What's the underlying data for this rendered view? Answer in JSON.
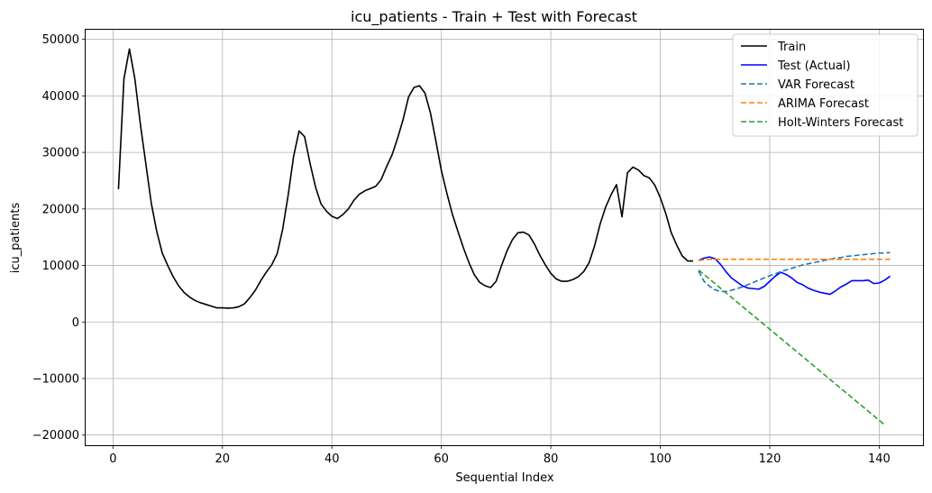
{
  "chart_data": {
    "type": "line",
    "title": "icu_patients - Train + Test with Forecast",
    "xlabel": "Sequential Index",
    "ylabel": "icu_patients",
    "xlim": [
      -5,
      148
    ],
    "ylim": [
      -21800,
      51700
    ],
    "grid": true,
    "legend_position": "top-right",
    "x_ticks": [
      0,
      20,
      40,
      60,
      80,
      100,
      120,
      140
    ],
    "y_ticks": [
      -20000,
      -10000,
      0,
      10000,
      20000,
      30000,
      40000,
      50000
    ],
    "x_tick_labels": [
      "0",
      "20",
      "40",
      "60",
      "80",
      "100",
      "120",
      "140"
    ],
    "y_tick_labels": [
      "−20000",
      "−10000",
      "0",
      "10000",
      "20000",
      "30000",
      "40000",
      "50000"
    ],
    "series": [
      {
        "name": "Train",
        "color": "#000000",
        "style": "solid",
        "x": [
          1,
          2,
          3,
          4,
          5,
          6,
          7,
          8,
          9,
          10,
          11,
          12,
          13,
          14,
          15,
          16,
          17,
          18,
          19,
          20,
          21,
          22,
          23,
          24,
          25,
          26,
          27,
          28,
          29,
          30,
          31,
          32,
          33,
          34,
          35,
          36,
          37,
          38,
          39,
          40,
          41,
          42,
          43,
          44,
          45,
          46,
          47,
          48,
          49,
          50,
          51,
          52,
          53,
          54,
          55,
          56,
          57,
          58,
          59,
          60,
          61,
          62,
          63,
          64,
          65,
          66,
          67,
          68,
          69,
          70,
          71,
          72,
          73,
          74,
          75,
          76,
          77,
          78,
          79,
          80,
          81,
          82,
          83,
          84,
          85,
          86,
          87,
          88,
          89,
          90,
          91,
          92,
          93,
          94,
          95,
          96,
          97,
          98,
          99,
          100,
          101,
          102,
          103,
          104,
          105,
          106
        ],
        "values": [
          23500,
          43000,
          48300,
          43000,
          35000,
          28000,
          21000,
          16000,
          12200,
          10000,
          8000,
          6400,
          5200,
          4400,
          3800,
          3400,
          3100,
          2800,
          2500,
          2500,
          2450,
          2500,
          2700,
          3200,
          4300,
          5600,
          7300,
          8800,
          10100,
          12100,
          16400,
          22400,
          29300,
          33800,
          32800,
          28100,
          23900,
          20900,
          19600,
          18700,
          18300,
          19000,
          20000,
          21500,
          22600,
          23200,
          23600,
          24000,
          25200,
          27500,
          29600,
          32500,
          35800,
          39800,
          41500,
          41800,
          40500,
          37000,
          32000,
          26800,
          22800,
          19100,
          16100,
          13200,
          10600,
          8400,
          7000,
          6400,
          6100,
          7200,
          10000,
          12600,
          14600,
          15800,
          15900,
          15400,
          13800,
          11800,
          10100,
          8600,
          7600,
          7200,
          7200,
          7500,
          8000,
          8900,
          10500,
          13500,
          17300,
          20300,
          22500,
          24300,
          18600,
          26400,
          27400,
          26900,
          25900,
          25500,
          24200,
          22000,
          19200,
          15800,
          13600,
          11700,
          10800,
          10800
        ]
      },
      {
        "name": "Test (Actual)",
        "color": "#0000ff",
        "style": "solid",
        "x": [
          107,
          108,
          109,
          110,
          111,
          112,
          113,
          114,
          115,
          116,
          117,
          118,
          119,
          120,
          121,
          122,
          123,
          124,
          125,
          126,
          127,
          128,
          129,
          130,
          131,
          132,
          133,
          134,
          135,
          136,
          137,
          138,
          139,
          140,
          141,
          142
        ],
        "values": [
          10900,
          11300,
          11500,
          11200,
          10200,
          8900,
          7800,
          7100,
          6400,
          6000,
          5900,
          5800,
          6300,
          7200,
          8100,
          8800,
          8400,
          7800,
          7000,
          6600,
          6000,
          5600,
          5300,
          5100,
          4900,
          5500,
          6200,
          6700,
          7300,
          7300,
          7300,
          7400,
          6800,
          6900,
          7400,
          8100
        ]
      },
      {
        "name": "VAR Forecast",
        "color": "#1f77b4",
        "style": "dashed",
        "x": [
          107,
          108,
          109,
          110,
          111,
          112,
          113,
          114,
          115,
          116,
          117,
          118,
          119,
          120,
          121,
          122,
          123,
          124,
          125,
          126,
          127,
          128,
          129,
          130,
          131,
          132,
          133,
          134,
          135,
          136,
          137,
          138,
          139,
          140,
          141,
          142
        ],
        "values": [
          9000,
          7200,
          6300,
          5700,
          5400,
          5400,
          5600,
          5900,
          6200,
          6600,
          7000,
          7400,
          7800,
          8200,
          8500,
          8900,
          9200,
          9500,
          9800,
          10100,
          10300,
          10500,
          10700,
          10900,
          11100,
          11300,
          11400,
          11600,
          11700,
          11800,
          11900,
          12000,
          12100,
          12200,
          12200,
          12300
        ]
      },
      {
        "name": "ARIMA Forecast",
        "color": "#ff7f0e",
        "style": "dashed",
        "x": [
          107,
          108,
          109,
          110,
          111,
          112,
          113,
          114,
          115,
          116,
          117,
          118,
          119,
          120,
          121,
          122,
          123,
          124,
          125,
          126,
          127,
          128,
          129,
          130,
          131,
          132,
          133,
          134,
          135,
          136,
          137,
          138,
          139,
          140,
          141,
          142
        ],
        "values": [
          10900,
          11000,
          11100,
          11100,
          11100,
          11100,
          11100,
          11100,
          11100,
          11100,
          11100,
          11100,
          11100,
          11100,
          11100,
          11100,
          11100,
          11100,
          11100,
          11100,
          11100,
          11100,
          11100,
          11100,
          11100,
          11100,
          11100,
          11100,
          11100,
          11100,
          11100,
          11100,
          11100,
          11100,
          11100,
          11100
        ]
      },
      {
        "name": "Holt-Winters Forecast",
        "color": "#2ca02c",
        "style": "dashed",
        "x": [
          107,
          141
        ],
        "values": [
          9200,
          -18200
        ]
      }
    ]
  }
}
